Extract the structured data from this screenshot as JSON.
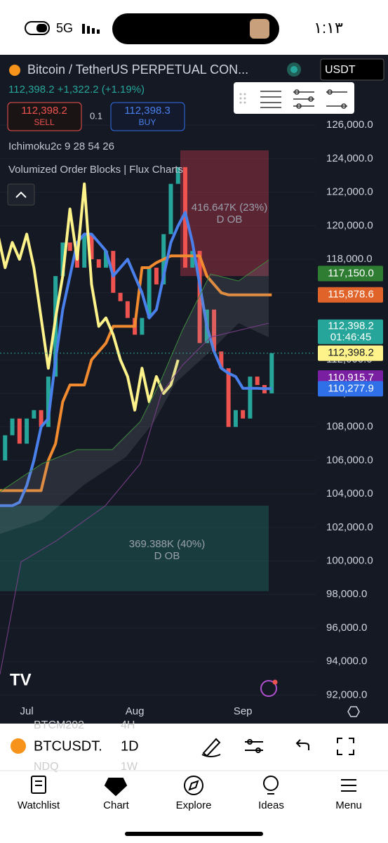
{
  "status_bar": {
    "network": "5G",
    "time": "١:١٣"
  },
  "header": {
    "symbol": "Bitcoin / TetherUS PERPETUAL CON...",
    "currency": "USDT",
    "quote": "112,398.2 +1,322.2 (+1.19%)",
    "sell_price": "112,398.2",
    "sell_label": "SELL",
    "quantity": "0.1",
    "buy_price": "112,398.3",
    "buy_label": "BUY",
    "indicators": [
      "Ichimoku2c 9 28 54 26",
      "Volumized Order Blocks | Flux Charts"
    ]
  },
  "chart_data": {
    "type": "candlestick",
    "categories": [
      null,
      null,
      null,
      null,
      "Jul",
      null,
      null,
      null,
      null,
      null,
      null,
      null,
      null,
      null,
      null,
      null,
      null,
      null,
      null,
      "Aug",
      null,
      null,
      null,
      null,
      null,
      null,
      null,
      null,
      null,
      null,
      null,
      null,
      null,
      null,
      "Sep",
      null,
      null,
      null,
      null
    ],
    "candles": {
      "up_color": "#26a69a",
      "down_color": "#ef5350",
      "values": [
        106000,
        107500,
        108500,
        107000,
        108500,
        109000,
        108000,
        111000,
        117000,
        119000,
        118500,
        117500,
        119500,
        118000,
        117500,
        118500,
        116000,
        115500,
        114500,
        113500,
        114500,
        117500,
        116500,
        119500,
        122500,
        123500,
        117500,
        118500,
        113000,
        115000,
        112500,
        111500,
        108000,
        109000,
        108500,
        111000,
        110500,
        110000,
        112398.2
      ]
    },
    "series": [
      {
        "color": "#f28b30",
        "values": [
          104200,
          104200,
          104200,
          104200,
          104200,
          104200,
          104200,
          106000,
          107000,
          109500,
          110500,
          110500,
          110500,
          112000,
          112500,
          113000,
          114000,
          114000,
          114000,
          114000,
          117500,
          117500,
          117800,
          118000,
          118200,
          118200,
          118200,
          118200,
          118200,
          117000,
          116500,
          116000,
          115878.6,
          115878.6,
          115878.6,
          115878.6,
          115878.6,
          115878.6,
          115878.6
        ]
      },
      {
        "color": "#4a80ec",
        "values": [
          103300,
          103300,
          103300,
          103500,
          104500,
          106000,
          108000,
          108500,
          112000,
          115000,
          117000,
          119000,
          119500,
          119500,
          119000,
          118500,
          117000,
          117500,
          118000,
          117000,
          116000,
          114500,
          115000,
          117000,
          119000,
          120000,
          120800,
          119000,
          116500,
          114000,
          112500,
          111500,
          111200,
          111000,
          110300,
          110300,
          110300,
          110277.9,
          110277.9
        ]
      },
      {
        "color": "#fdf38a",
        "values": [
          119500,
          117500,
          119000,
          118000,
          119500,
          117500,
          114500,
          111500,
          114500,
          117000,
          121000,
          118000,
          122500,
          116500,
          114000,
          114500,
          113500,
          112000,
          111000,
          109000,
          111500,
          109500,
          111000,
          110000,
          110500,
          112000,
          null,
          null,
          null,
          null,
          null,
          null,
          null,
          null,
          null,
          null,
          null,
          null,
          null
        ]
      }
    ],
    "ylim": [
      90300,
      130200
    ],
    "yticks": [
      {
        "value": 92000,
        "label": "92,000.0"
      },
      {
        "value": 94000,
        "label": "94,000.0"
      },
      {
        "value": 96000,
        "label": "96,000.0"
      },
      {
        "value": 98000,
        "label": "98,000.0"
      },
      {
        "value": 100000,
        "label": "100,000.0"
      },
      {
        "value": 102000,
        "label": "102,000.0"
      },
      {
        "value": 104000,
        "label": "104,000.0"
      },
      {
        "value": 106000,
        "label": "106,000.0"
      },
      {
        "value": 108000,
        "label": "108,000.0"
      },
      {
        "value": 110000,
        "label": "110,000.0"
      },
      {
        "value": 112000,
        "label": "112,000.0"
      },
      {
        "value": 114000,
        "label": "114,000.0"
      },
      {
        "value": 116000,
        "label": "116,000.0"
      },
      {
        "value": 118000,
        "label": "118,000.0"
      },
      {
        "value": 120000,
        "label": "120,000.0"
      },
      {
        "value": 122000,
        "label": "122,000.0"
      },
      {
        "value": 124000,
        "label": "124,000.0"
      },
      {
        "value": 126000,
        "label": "126,000.0"
      }
    ],
    "order_blocks": [
      {
        "top": 124500,
        "bottom": 117000,
        "color": "#b2364a",
        "label": "416.647K (23%)",
        "type_label": "D OB"
      },
      {
        "top": 103300,
        "bottom": 98200,
        "color": "#1f6b62",
        "label": "369.388K (40%)",
        "type_label": "D OB"
      }
    ],
    "price_tags": [
      {
        "value": 117150,
        "label": "117,150.0",
        "color": "#2e7d32",
        "text_color": "#ffffff"
      },
      {
        "value": 115878.6,
        "label": "115,878.6",
        "color": "#e0632a",
        "text_color": "#ffffff"
      },
      {
        "value": 112398.2,
        "label": "112,398.2",
        "countdown": "01:46:45",
        "color": "#26a69a",
        "text_color": "#ffffff"
      },
      {
        "value": 112398.2,
        "label": "112,398.2",
        "color": "#fdf38a",
        "text_color": "#131722"
      },
      {
        "value": 110915.7,
        "label": "110,915.7",
        "color": "#7b1fa2",
        "text_color": "#ffffff"
      },
      {
        "value": 110277.9,
        "label": "110,277.9",
        "color": "#2f6fe8",
        "text_color": "#ffffff"
      }
    ]
  },
  "toolbar": {
    "symbol": "BTCUSDT.",
    "interval": "1D",
    "ghost": [
      "BTCM202",
      "4H",
      "NDQ",
      "1W"
    ]
  },
  "nav": [
    "Watchlist",
    "Chart",
    "Explore",
    "Ideas",
    "Menu"
  ]
}
